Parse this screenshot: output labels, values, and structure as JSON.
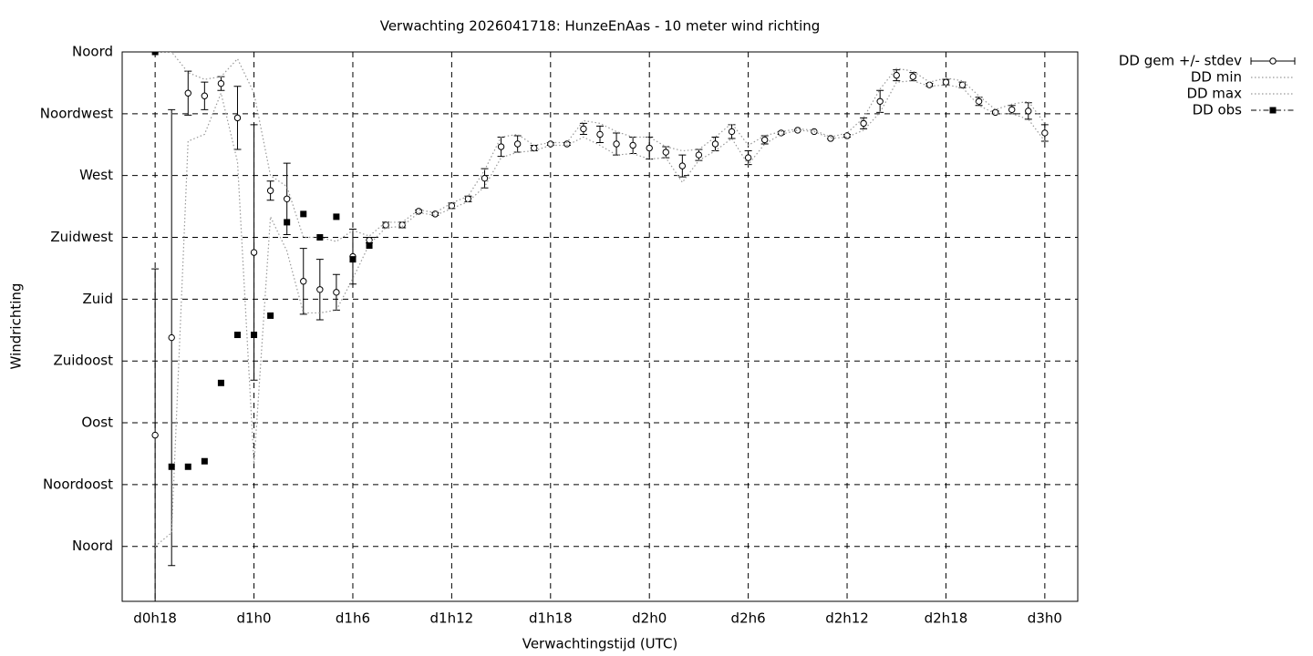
{
  "chart_data": {
    "type": "errorbar-line",
    "title": "Verwachting 2026041718: HunzeEnAas - 10 meter wind richting",
    "x_label": "Verwachtingstijd (UTC)",
    "y_label": "Windrichting",
    "x": [
      18,
      19,
      20,
      21,
      22,
      23,
      24,
      25,
      26,
      27,
      28,
      29,
      30,
      31,
      32,
      33,
      34,
      35,
      36,
      37,
      38,
      39,
      40,
      41,
      42,
      43,
      44,
      45,
      46,
      47,
      48,
      49,
      50,
      51,
      52,
      53,
      54,
      55,
      56,
      57,
      58,
      59,
      60,
      61,
      62,
      63,
      64,
      65,
      66,
      67,
      68,
      69,
      70,
      71,
      72
    ],
    "xlim": [
      16,
      74
    ],
    "xticks": [
      {
        "value": 18,
        "label": "d0h18"
      },
      {
        "value": 24,
        "label": "d1h0"
      },
      {
        "value": 30,
        "label": "d1h6"
      },
      {
        "value": 36,
        "label": "d1h12"
      },
      {
        "value": 42,
        "label": "d1h18"
      },
      {
        "value": 48,
        "label": "d2h0"
      },
      {
        "value": 54,
        "label": "d2h6"
      },
      {
        "value": 60,
        "label": "d2h12"
      },
      {
        "value": 66,
        "label": "d2h18"
      },
      {
        "value": 72,
        "label": "d3h0"
      }
    ],
    "ylim": [
      -40,
      360
    ],
    "yticks": [
      {
        "value": 360,
        "label": "Noord"
      },
      {
        "value": 315,
        "label": "Noordwest"
      },
      {
        "value": 270,
        "label": "West"
      },
      {
        "value": 225,
        "label": "Zuidwest"
      },
      {
        "value": 180,
        "label": "Zuid"
      },
      {
        "value": 135,
        "label": "Zuidoost"
      },
      {
        "value": 90,
        "label": "Oost"
      },
      {
        "value": 45,
        "label": "Noordoost"
      },
      {
        "value": 0,
        "label": "Noord"
      }
    ],
    "grid": true,
    "legend": "outside-top-right",
    "series": [
      {
        "name": "DD gem +/- stdev",
        "color": "#000000",
        "style": "errorbar",
        "values": [
          81,
          152,
          330,
          328,
          337,
          312,
          214,
          259,
          253,
          193,
          187,
          185,
          211,
          223,
          234,
          234,
          244,
          242,
          248,
          253,
          268,
          291,
          293,
          290,
          293,
          293,
          304,
          300,
          293,
          292,
          290,
          287,
          277,
          285,
          293,
          302,
          283,
          296,
          301,
          303,
          302,
          297,
          299,
          308,
          324,
          343,
          342,
          336,
          338,
          336,
          324,
          316,
          318,
          317,
          301
        ],
        "errors": [
          121,
          166,
          16,
          10,
          5,
          23,
          93,
          7,
          26,
          24,
          22,
          13,
          20,
          2,
          2,
          2,
          1,
          1,
          2,
          2,
          7,
          7,
          6,
          2,
          1,
          1,
          4,
          6,
          8,
          6,
          8,
          4,
          8,
          4,
          5,
          5,
          5,
          3,
          1,
          0,
          0,
          0,
          1,
          4,
          8,
          4,
          3,
          1,
          2,
          2,
          3,
          1,
          3,
          6,
          6
        ]
      },
      {
        "name": "DD min",
        "color": "#999999",
        "style": "dotted",
        "values": [
          0,
          10,
          295,
          300,
          330,
          280,
          60,
          240,
          215,
          170,
          170,
          172,
          195,
          220,
          232,
          233,
          243,
          241,
          246,
          251,
          262,
          283,
          287,
          288,
          292,
          292,
          298,
          292,
          285,
          286,
          282,
          283,
          265,
          281,
          288,
          297,
          278,
          293,
          300,
          303,
          302,
          297,
          298,
          303,
          316,
          338,
          339,
          335,
          336,
          334,
          321,
          315,
          315,
          311,
          295
        ]
      },
      {
        "name": "DD max",
        "color": "#999999",
        "style": "dotted",
        "values": [
          360,
          360,
          345,
          340,
          342,
          355,
          330,
          270,
          262,
          225,
          225,
          222,
          230,
          226,
          236,
          236,
          245,
          243,
          250,
          255,
          274,
          298,
          300,
          292,
          294,
          294,
          310,
          308,
          302,
          298,
          298,
          291,
          288,
          289,
          298,
          308,
          292,
          299,
          302,
          304,
          303,
          298,
          301,
          312,
          333,
          348,
          346,
          338,
          341,
          339,
          328,
          318,
          322,
          324,
          308
        ]
      },
      {
        "name": "DD obs",
        "color": "#000000",
        "style": "points",
        "values": [
          360,
          58,
          58,
          62,
          119,
          154,
          154,
          168,
          236,
          242,
          225,
          240,
          209,
          219,
          null,
          null,
          null,
          null,
          null,
          null,
          null,
          null,
          null,
          null,
          null,
          null,
          null,
          null,
          null,
          null,
          null,
          null,
          null,
          null,
          null,
          null,
          null,
          null,
          null,
          null,
          null,
          null,
          null,
          null,
          null,
          null,
          null,
          null,
          null,
          null,
          null,
          null,
          null,
          null,
          null
        ]
      }
    ]
  }
}
